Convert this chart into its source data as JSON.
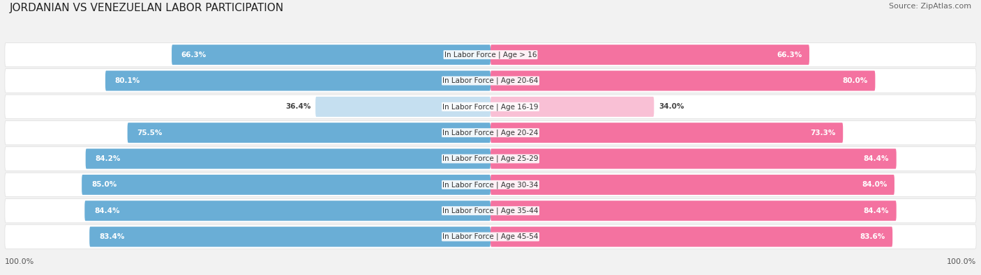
{
  "title": "JORDANIAN VS VENEZUELAN LABOR PARTICIPATION",
  "source": "Source: ZipAtlas.com",
  "categories": [
    "In Labor Force | Age > 16",
    "In Labor Force | Age 20-64",
    "In Labor Force | Age 16-19",
    "In Labor Force | Age 20-24",
    "In Labor Force | Age 25-29",
    "In Labor Force | Age 30-34",
    "In Labor Force | Age 35-44",
    "In Labor Force | Age 45-54"
  ],
  "jordanian": [
    66.3,
    80.1,
    36.4,
    75.5,
    84.2,
    85.0,
    84.4,
    83.4
  ],
  "venezuelan": [
    66.3,
    80.0,
    34.0,
    73.3,
    84.4,
    84.0,
    84.4,
    83.6
  ],
  "jordanian_color": "#6aaed6",
  "jordanian_color_light": "#c5dff0",
  "venezuelan_color": "#f472a0",
  "venezuelan_color_light": "#f9c0d5",
  "bg_color": "#f2f2f2",
  "max_value": 100.0,
  "title_fontsize": 11,
  "label_fontsize": 7.5,
  "value_fontsize": 7.5,
  "legend_fontsize": 9
}
